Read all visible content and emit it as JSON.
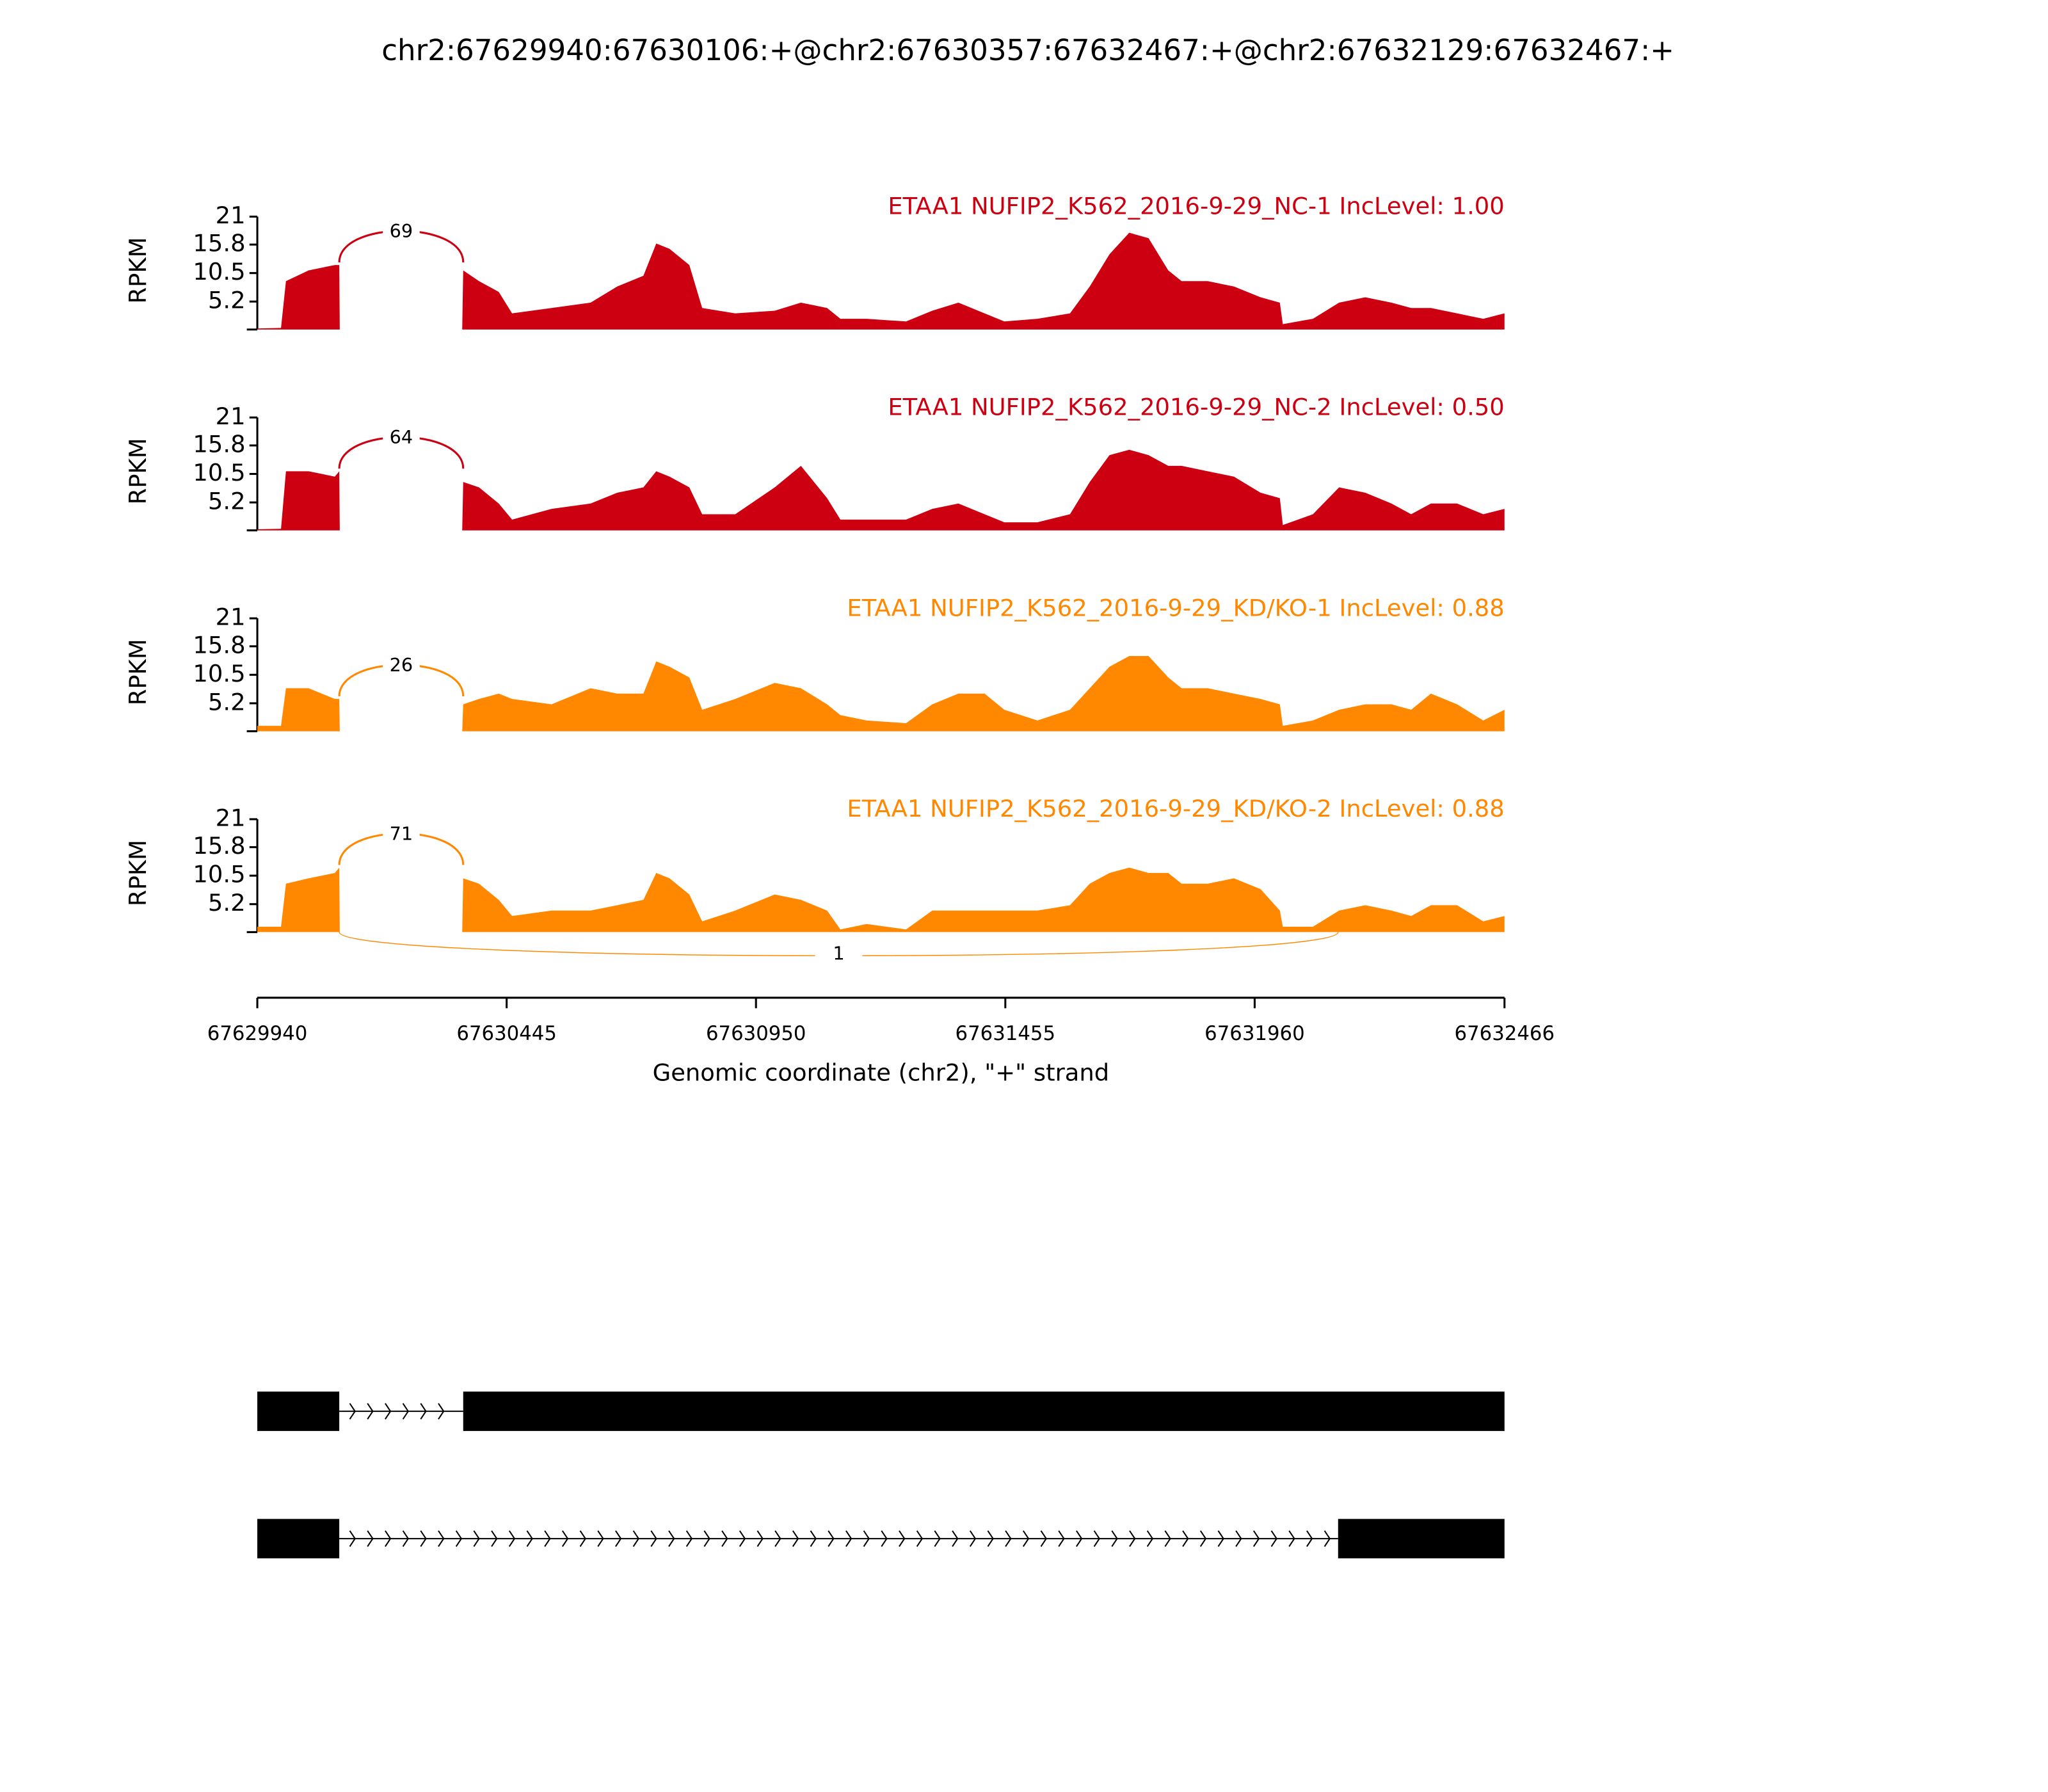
{
  "chart_data": {
    "type": "area",
    "title": "chr2:67629940:67630106:+@chr2:67630357:67632467:+@chr2:67632129:67632467:+",
    "xlabel": "Genomic coordinate (chr2), \"+\" strand",
    "ylabel": "RPKM",
    "xlim": [
      67629940,
      67632466
    ],
    "xticks": [
      67629940,
      67630445,
      67630950,
      67631455,
      67631960,
      67632466
    ],
    "ylim": [
      0,
      21
    ],
    "yticks": [
      5.2,
      10.5,
      15.8,
      21
    ],
    "x": [
      67629940,
      67629988,
      67629998,
      67630044,
      67630097,
      67630106,
      67630107,
      67630355,
      67630357,
      67630389,
      67630429,
      67630456,
      67630536,
      67630615,
      67630669,
      67630722,
      67630748,
      67630775,
      67630815,
      67630841,
      67630908,
      67630988,
      67631041,
      67631094,
      67631121,
      67631174,
      67631254,
      67631307,
      67631360,
      67631413,
      67631453,
      67631520,
      67631586,
      67631626,
      67631666,
      67631706,
      67631745,
      67631785,
      67631812,
      67631865,
      67631918,
      67631972,
      67632011,
      67632017,
      67632078,
      67632131,
      67632184,
      67632237,
      67632277,
      67632317,
      67632370,
      67632423,
      67632466
    ],
    "series": [
      {
        "name": "ETAA1 NUFIP2_K562_2016-9-29_NC-1 IncLevel: 1.00",
        "color": "#cc0011",
        "values": [
          0.2,
          0.3,
          9,
          11,
          12,
          12,
          0,
          0,
          11,
          9,
          7,
          3,
          4,
          5,
          8,
          10,
          16,
          15,
          12,
          4,
          3,
          3.5,
          5,
          4,
          2,
          2,
          1.5,
          3.5,
          5,
          3,
          1.5,
          2,
          3,
          8,
          14,
          18,
          17,
          11,
          9,
          9,
          8,
          6,
          5,
          1,
          2,
          5,
          6,
          5,
          4,
          4,
          3,
          2,
          3
        ],
        "junctions": [
          {
            "start": 67630106,
            "end": 67630357,
            "count": 69
          }
        ]
      },
      {
        "name": "ETAA1 NUFIP2_K562_2016-9-29_NC-2 IncLevel: 0.50",
        "color": "#cc0011",
        "values": [
          0.2,
          0.3,
          11,
          11,
          10,
          11,
          0,
          0,
          9,
          8,
          5,
          2,
          4,
          5,
          7,
          8,
          11,
          10,
          8,
          3,
          3,
          8,
          12,
          6,
          2,
          2,
          2,
          4,
          5,
          3,
          1.5,
          1.5,
          3,
          9,
          14,
          15,
          14,
          12,
          12,
          11,
          10,
          7,
          6,
          1,
          3,
          8,
          7,
          5,
          3,
          5,
          5,
          3,
          4
        ],
        "junctions": [
          {
            "start": 67630106,
            "end": 67630357,
            "count": 64
          }
        ]
      },
      {
        "name": "ETAA1 NUFIP2_K562_2016-9-29_KD/KO-1 IncLevel: 0.88",
        "color": "#ff8800",
        "values": [
          1,
          1,
          8,
          8,
          6,
          6,
          0,
          0,
          5,
          6,
          7,
          6,
          5,
          8,
          7,
          7,
          13,
          12,
          10,
          4,
          6,
          9,
          8,
          5,
          3,
          2,
          1.5,
          5,
          7,
          7,
          4,
          2,
          4,
          8,
          12,
          14,
          14,
          10,
          8,
          8,
          7,
          6,
          5,
          1,
          2,
          4,
          5,
          5,
          4,
          7,
          5,
          2,
          4
        ],
        "junctions": [
          {
            "start": 67630106,
            "end": 67630357,
            "count": 26
          }
        ]
      },
      {
        "name": "ETAA1 NUFIP2_K562_2016-9-29_KD/KO-2 IncLevel: 0.88",
        "color": "#ff8800",
        "values": [
          1,
          1,
          9,
          10,
          11,
          12,
          0,
          0,
          10,
          9,
          6,
          3,
          4,
          4,
          5,
          6,
          11,
          10,
          7,
          2,
          4,
          7,
          6,
          4,
          0.5,
          1.5,
          0.5,
          4,
          4,
          4,
          4,
          4,
          5,
          9,
          11,
          12,
          11,
          11,
          9,
          9,
          10,
          8,
          4,
          1,
          1,
          4,
          5,
          4,
          3,
          5,
          5,
          2,
          3
        ],
        "junctions": [
          {
            "start": 67630106,
            "end": 67630357,
            "count": 71
          },
          {
            "start": 67630106,
            "end": 67632129,
            "count": 1
          }
        ]
      }
    ],
    "transcripts": [
      [
        [
          67629940,
          67630106
        ],
        [
          67630357,
          67632466
        ]
      ],
      [
        [
          67629940,
          67630106
        ],
        [
          67632129,
          67632466
        ]
      ]
    ]
  }
}
